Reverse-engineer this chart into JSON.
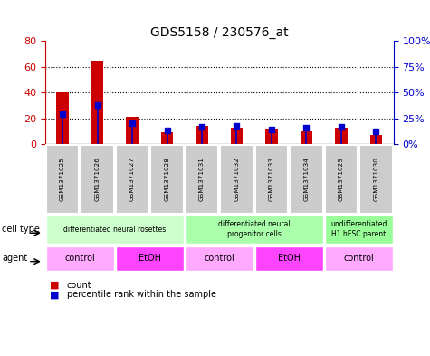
{
  "title": "GDS5158 / 230576_at",
  "samples": [
    "GSM1371025",
    "GSM1371026",
    "GSM1371027",
    "GSM1371028",
    "GSM1371031",
    "GSM1371032",
    "GSM1371033",
    "GSM1371034",
    "GSM1371029",
    "GSM1371030"
  ],
  "count_values": [
    40,
    65,
    21,
    9,
    14,
    13,
    12,
    10,
    13,
    7
  ],
  "percentile_values": [
    29,
    38,
    20,
    13,
    17,
    18,
    14,
    16,
    17,
    12
  ],
  "ylim_left": [
    0,
    80
  ],
  "ylim_right": [
    0,
    100
  ],
  "yticks_left": [
    0,
    20,
    40,
    60,
    80
  ],
  "ytick_labels_right": [
    "0%",
    "25%",
    "50%",
    "75%",
    "100%"
  ],
  "yticks_right": [
    0,
    25,
    50,
    75,
    100
  ],
  "bar_color": "#cc0000",
  "dot_color": "#0000cc",
  "bar_width": 0.35,
  "cell_type_groups": [
    {
      "label": "differentiated neural rosettes",
      "start": 0,
      "end": 3,
      "color": "#ccffcc"
    },
    {
      "label": "differentiated neural\nprogenitor cells",
      "start": 4,
      "end": 7,
      "color": "#aaffaa"
    },
    {
      "label": "undifferentiated\nH1 hESC parent",
      "start": 8,
      "end": 9,
      "color": "#99ff99"
    }
  ],
  "agent_groups": [
    {
      "label": "control",
      "start": 0,
      "end": 1,
      "color": "#ffaaff"
    },
    {
      "label": "EtOH",
      "start": 2,
      "end": 3,
      "color": "#ff44ff"
    },
    {
      "label": "control",
      "start": 4,
      "end": 5,
      "color": "#ffaaff"
    },
    {
      "label": "EtOH",
      "start": 6,
      "end": 7,
      "color": "#ff44ff"
    },
    {
      "label": "control",
      "start": 8,
      "end": 9,
      "color": "#ffaaff"
    }
  ],
  "sample_bg_color": "#cccccc",
  "left_tick_color": "#cc0000",
  "right_tick_color": "#0000cc",
  "legend_count_label": "count",
  "legend_pct_label": "percentile rank within the sample",
  "cell_type_label": "cell type",
  "agent_label": "agent"
}
